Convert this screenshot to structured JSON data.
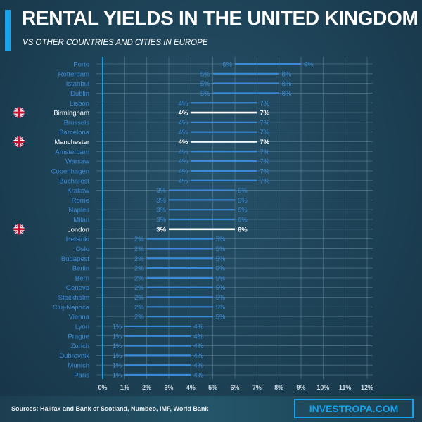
{
  "header": {
    "title": "RENTAL YIELDS IN THE UNITED KINGDOM",
    "subtitle": "VS OTHER COUNTRIES AND CITIES IN EUROPE"
  },
  "footer": {
    "sources": "Sources: Halifax and Bank of Scotland, Numbeo, IMF, World Bank",
    "brand": "INVESTROPA.COM"
  },
  "colors": {
    "series": "#3a8ad8",
    "highlight": "#ffffff",
    "accent": "#14a3ec",
    "background": "#1e4256"
  },
  "chart_data": {
    "type": "range-bar",
    "xlim": [
      0,
      12
    ],
    "x_ticks": [
      "0%",
      "1%",
      "2%",
      "3%",
      "4%",
      "5%",
      "6%",
      "7%",
      "8%",
      "9%",
      "10%",
      "11%",
      "12%"
    ],
    "grid": true,
    "unit": "%",
    "rows": [
      {
        "city": "Porto",
        "low": 6,
        "high": 9
      },
      {
        "city": "Rotterdam",
        "low": 5,
        "high": 8
      },
      {
        "city": "Istanbul",
        "low": 5,
        "high": 8
      },
      {
        "city": "Dublin",
        "low": 5,
        "high": 8
      },
      {
        "city": "Lisbon",
        "low": 4,
        "high": 7
      },
      {
        "city": "Birmingham",
        "low": 4,
        "high": 7,
        "highlight": true,
        "icon": "uk-flag-icon"
      },
      {
        "city": "Brussels",
        "low": 4,
        "high": 7
      },
      {
        "city": "Barcelona",
        "low": 4,
        "high": 7
      },
      {
        "city": "Manchester",
        "low": 4,
        "high": 7,
        "highlight": true,
        "icon": "uk-flag-icon"
      },
      {
        "city": "Amsterdam",
        "low": 4,
        "high": 7
      },
      {
        "city": "Warsaw",
        "low": 4,
        "high": 7
      },
      {
        "city": "Copenhagen",
        "low": 4,
        "high": 7
      },
      {
        "city": "Bucharest",
        "low": 4,
        "high": 7
      },
      {
        "city": "Krakow",
        "low": 3,
        "high": 6
      },
      {
        "city": "Rome",
        "low": 3,
        "high": 6
      },
      {
        "city": "Naples",
        "low": 3,
        "high": 6
      },
      {
        "city": "Milan",
        "low": 3,
        "high": 6
      },
      {
        "city": "London",
        "low": 3,
        "high": 6,
        "highlight": true,
        "icon": "uk-flag-icon"
      },
      {
        "city": "Helsinki",
        "low": 2,
        "high": 5
      },
      {
        "city": "Oslo",
        "low": 2,
        "high": 5
      },
      {
        "city": "Budapest",
        "low": 2,
        "high": 5
      },
      {
        "city": "Berlin",
        "low": 2,
        "high": 5
      },
      {
        "city": "Bern",
        "low": 2,
        "high": 5
      },
      {
        "city": "Geneva",
        "low": 2,
        "high": 5
      },
      {
        "city": "Stockholm",
        "low": 2,
        "high": 5
      },
      {
        "city": "Cluj-Napoca",
        "low": 2,
        "high": 5
      },
      {
        "city": "Vienna",
        "low": 2,
        "high": 5
      },
      {
        "city": "Lyon",
        "low": 1,
        "high": 4
      },
      {
        "city": "Prague",
        "low": 1,
        "high": 4
      },
      {
        "city": "Zurich",
        "low": 1,
        "high": 4
      },
      {
        "city": "Dubrovnik",
        "low": 1,
        "high": 4
      },
      {
        "city": "Munich",
        "low": 1,
        "high": 4
      },
      {
        "city": "Paris",
        "low": 1,
        "high": 4
      }
    ]
  }
}
